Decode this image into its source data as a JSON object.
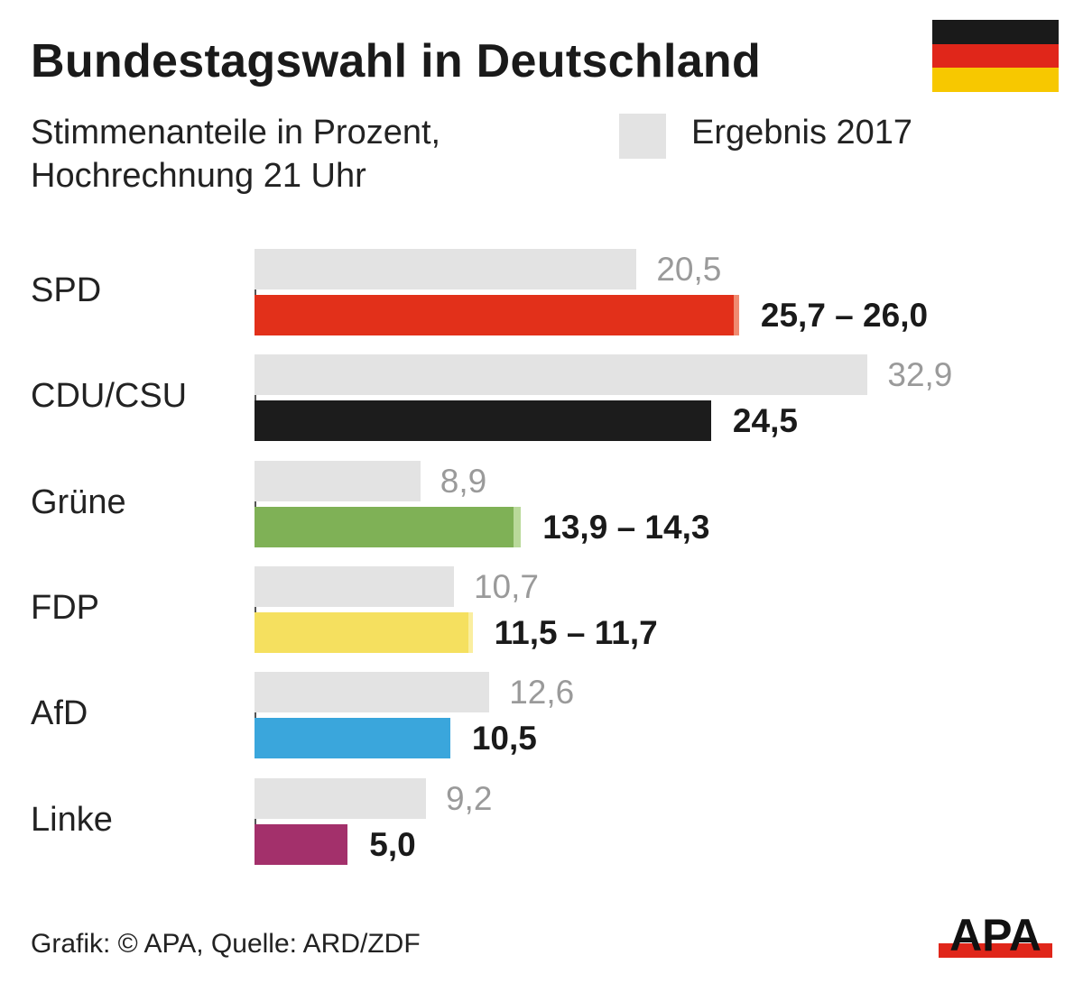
{
  "header": {
    "title": "Bundestagswahl in Deutschland",
    "subtitle_line1": "Stimmenanteile in Prozent,",
    "subtitle_line2": "Hochrechnung 21 Uhr",
    "legend_label": "Ergebnis 2017",
    "flag_colors": [
      "#1a1a1a",
      "#e0261a",
      "#f7c800"
    ]
  },
  "footer": {
    "source": "Grafik: © APA, Quelle: ARD/ZDF",
    "logo_text": "APA"
  },
  "chart_data": {
    "type": "bar",
    "orientation": "horizontal",
    "categories": [
      "SPD",
      "CDU/CSU",
      "Grüne",
      "FDP",
      "AfD",
      "Linke"
    ],
    "series": [
      {
        "name": "Ergebnis 2017",
        "values": [
          20.5,
          32.9,
          8.9,
          10.7,
          12.6,
          9.2
        ],
        "labels": [
          "20,5",
          "32,9",
          "8,9",
          "10,7",
          "12,6",
          "9,2"
        ],
        "color": "#e3e3e3"
      },
      {
        "values_low": [
          25.7,
          24.5,
          13.9,
          11.5,
          10.5,
          5.0
        ],
        "values_high": [
          26.0,
          24.5,
          14.3,
          11.7,
          10.5,
          5.0
        ],
        "labels": [
          "25,7 – 26,0",
          "24,5",
          "13,9 – 14,3",
          "11,5 – 11,7",
          "10,5",
          "5,0"
        ],
        "colors": [
          "#e2301a",
          "#1c1c1c",
          "#7fb156",
          "#f5e05f",
          "#3aa6dc",
          "#a3306b"
        ],
        "range_colors": [
          "#f08a70",
          "#1c1c1c",
          "#b9d99a",
          "#faeea0",
          "#3aa6dc",
          "#a3306b"
        ]
      }
    ],
    "xlim": [
      0,
      35
    ],
    "grid": false,
    "legend": "top-right"
  }
}
